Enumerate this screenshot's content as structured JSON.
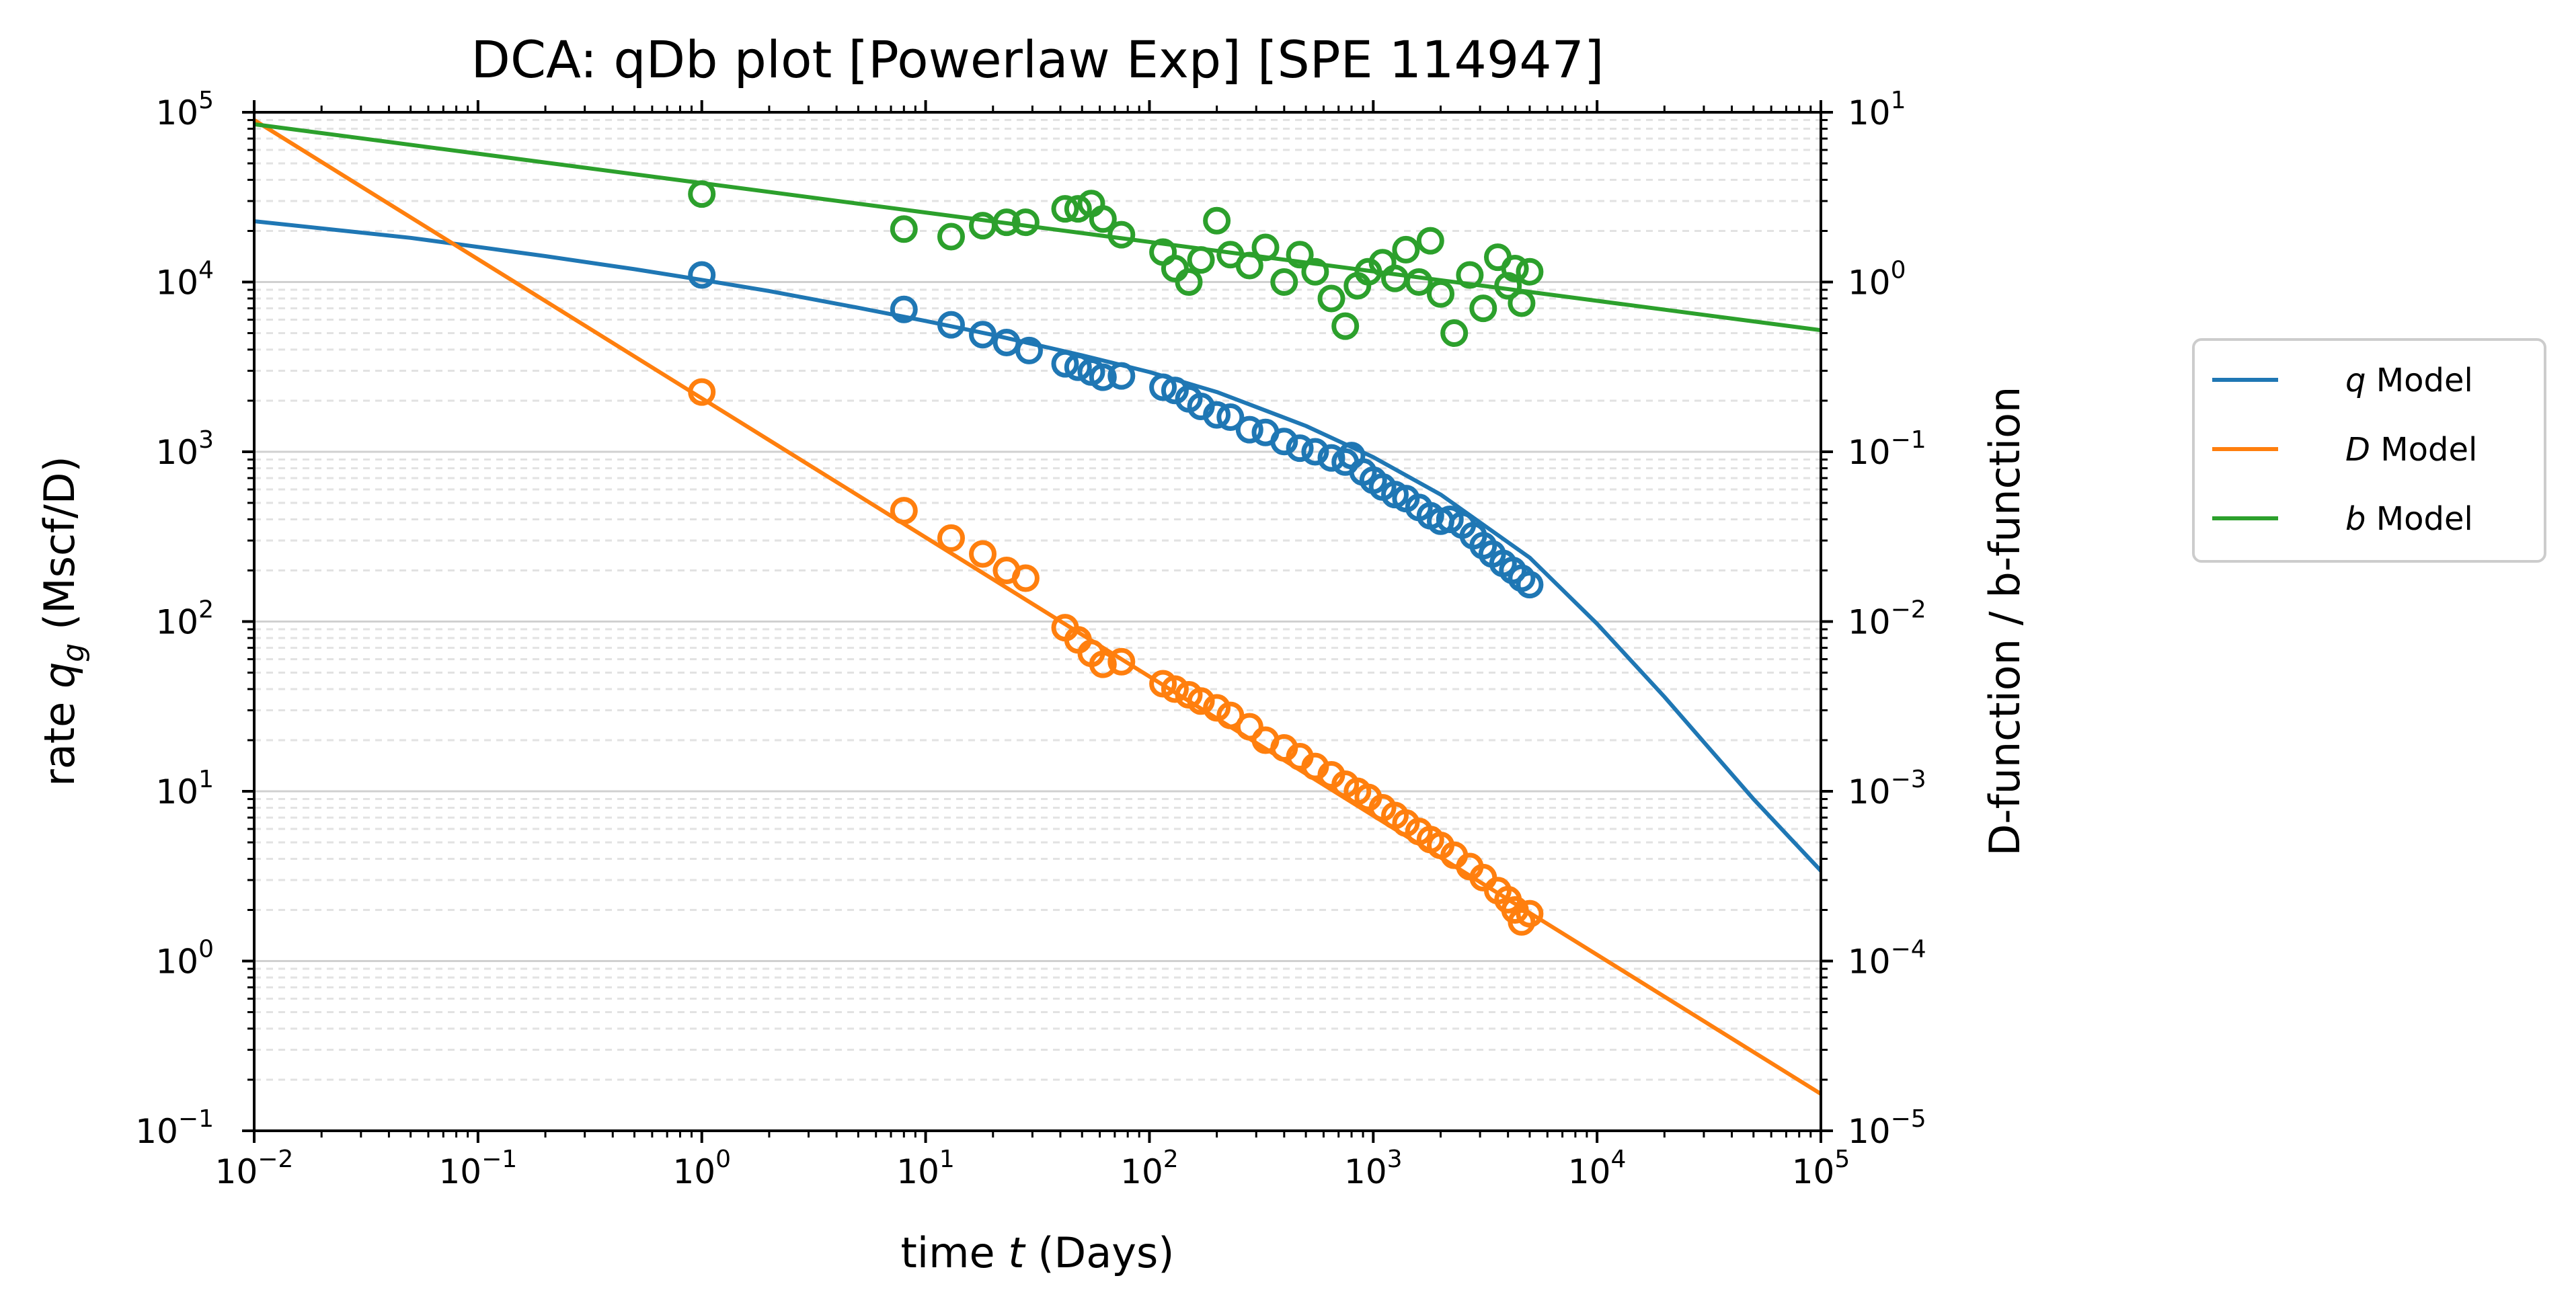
{
  "chart_data": {
    "type": "scatter",
    "title": "DCA: qDb plot  [Powerlaw Exp]  [SPE 114947]",
    "xlabel": {
      "pre": "time ",
      "var": "t",
      "post": " (Days)"
    },
    "ylabel_left": {
      "pre": "rate ",
      "var": "q",
      "sub": "g",
      "post": " (Mscf/D)"
    },
    "ylabel_right": "D-function / b-function",
    "x_scale": "log",
    "y_scale": "log",
    "xlim": [
      0.01,
      100000
    ],
    "ylim_left": [
      0.1,
      100000
    ],
    "ylim_right": [
      1e-05,
      10
    ],
    "x_ticks": [
      {
        "base": "10",
        "exp": "−2"
      },
      {
        "base": "10",
        "exp": "−1"
      },
      {
        "base": "10",
        "exp": "0"
      },
      {
        "base": "10",
        "exp": "1"
      },
      {
        "base": "10",
        "exp": "2"
      },
      {
        "base": "10",
        "exp": "3"
      },
      {
        "base": "10",
        "exp": "4"
      },
      {
        "base": "10",
        "exp": "5"
      }
    ],
    "y_left_ticks": [
      {
        "base": "10",
        "exp": "−1"
      },
      {
        "base": "10",
        "exp": "0"
      },
      {
        "base": "10",
        "exp": "1"
      },
      {
        "base": "10",
        "exp": "2"
      },
      {
        "base": "10",
        "exp": "3"
      },
      {
        "base": "10",
        "exp": "4"
      },
      {
        "base": "10",
        "exp": "5"
      }
    ],
    "y_right_ticks": [
      {
        "base": "10",
        "exp": "−5"
      },
      {
        "base": "10",
        "exp": "−4"
      },
      {
        "base": "10",
        "exp": "−3"
      },
      {
        "base": "10",
        "exp": "−2"
      },
      {
        "base": "10",
        "exp": "−1"
      },
      {
        "base": "10",
        "exp": "0"
      },
      {
        "base": "10",
        "exp": "1"
      }
    ],
    "grid": "major solid, minor dashed",
    "legend_position": "outside right",
    "series": [
      {
        "key": "q",
        "name_var": "q",
        "name_text": " Model",
        "color": "#1f77b4",
        "axis": "left",
        "model_curve": {
          "t": [
            0.01,
            0.02,
            0.05,
            0.1,
            0.2,
            0.5,
            1,
            2,
            5,
            10,
            20,
            50,
            100,
            200,
            500,
            1000,
            2000,
            5000,
            10000,
            20000,
            50000,
            100000
          ],
          "y": [
            22800,
            20700,
            18200,
            16100,
            14200,
            11900,
            10300,
            8850,
            7050,
            5900,
            4880,
            3700,
            2950,
            2250,
            1420,
            930,
            560,
            238,
            97,
            36,
            9.0,
            3.4
          ]
        },
        "observed": {
          "t": [
            1,
            8,
            13,
            18,
            23,
            29,
            42,
            48,
            55,
            62,
            75,
            115,
            130,
            150,
            170,
            200,
            230,
            280,
            330,
            400,
            470,
            550,
            650,
            750,
            800,
            900,
            1000,
            1100,
            1250,
            1400,
            1600,
            1800,
            2000,
            2200,
            2500,
            2800,
            3100,
            3400,
            3800,
            4200,
            4600,
            5000
          ],
          "y": [
            11000,
            6900,
            5600,
            4900,
            4400,
            3950,
            3300,
            3150,
            2950,
            2750,
            2800,
            2400,
            2300,
            2050,
            1850,
            1650,
            1600,
            1350,
            1300,
            1150,
            1050,
            1000,
            920,
            870,
            950,
            760,
            680,
            620,
            560,
            530,
            470,
            420,
            390,
            400,
            370,
            320,
            280,
            250,
            220,
            200,
            180,
            165
          ]
        }
      },
      {
        "key": "D",
        "name_var": "D",
        "name_text": " Model",
        "color": "#ff7f0e",
        "axis": "right",
        "model_curve": {
          "t": [
            0.01,
            100000
          ],
          "y": [
            9.0,
            1.65e-05
          ]
        },
        "observed": {
          "t": [
            1,
            8,
            13,
            18,
            23,
            28,
            42,
            48,
            55,
            62,
            75,
            115,
            130,
            150,
            170,
            200,
            230,
            280,
            330,
            400,
            470,
            550,
            650,
            750,
            850,
            950,
            1100,
            1250,
            1400,
            1600,
            1800,
            2000,
            2300,
            2700,
            3100,
            3600,
            4000,
            4300,
            4600,
            5000
          ],
          "y": [
            0.225,
            0.045,
            0.031,
            0.025,
            0.02,
            0.018,
            0.0092,
            0.0078,
            0.0065,
            0.0056,
            0.0058,
            0.0043,
            0.004,
            0.0037,
            0.0034,
            0.0031,
            0.0028,
            0.0024,
            0.002,
            0.0018,
            0.0016,
            0.0014,
            0.00125,
            0.0011,
            0.001,
            0.00092,
            0.0008,
            0.00072,
            0.00065,
            0.00058,
            0.00052,
            0.00048,
            0.00042,
            0.00036,
            0.00031,
            0.00026,
            0.00023,
            0.0002,
            0.00017,
            0.00019
          ]
        }
      },
      {
        "key": "b",
        "name_var": "b",
        "name_text": " Model",
        "color": "#2ca02c",
        "axis": "right",
        "model_curve": {
          "t": [
            0.01,
            100000
          ],
          "y": [
            8.5,
            0.52
          ]
        },
        "observed": {
          "t": [
            1,
            8,
            13,
            18,
            23,
            28,
            42,
            48,
            55,
            62,
            75,
            115,
            130,
            150,
            170,
            200,
            230,
            280,
            330,
            400,
            470,
            550,
            650,
            750,
            850,
            950,
            1100,
            1250,
            1400,
            1600,
            1800,
            2000,
            2300,
            2700,
            3100,
            3600,
            4000,
            4300,
            4600,
            5000
          ],
          "y": [
            3.3,
            2.05,
            1.85,
            2.15,
            2.25,
            2.25,
            2.7,
            2.7,
            2.9,
            2.35,
            1.9,
            1.5,
            1.2,
            1.0,
            1.35,
            2.3,
            1.45,
            1.25,
            1.6,
            1.0,
            1.45,
            1.15,
            0.8,
            0.55,
            0.95,
            1.15,
            1.3,
            1.05,
            1.55,
            1.0,
            1.75,
            0.85,
            0.5,
            1.1,
            0.7,
            1.4,
            0.95,
            1.2,
            0.75,
            1.15
          ]
        }
      }
    ]
  }
}
